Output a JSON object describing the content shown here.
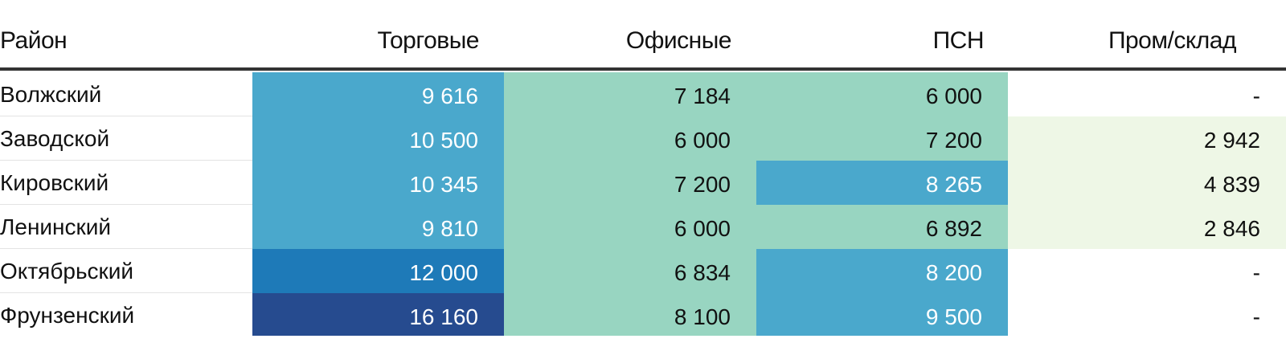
{
  "table": {
    "headers": [
      "Район",
      "Торговые",
      "Офисные",
      "ПСН",
      "Пром/склад"
    ],
    "rows": [
      {
        "district": "Волжский",
        "values": [
          "9 616",
          "7 184",
          "6 000",
          "-"
        ]
      },
      {
        "district": "Заводской",
        "values": [
          "10 500",
          "6 000",
          "7 200",
          "2 942"
        ]
      },
      {
        "district": "Кировский",
        "values": [
          "10 345",
          "7 200",
          "8 265",
          "4 839"
        ]
      },
      {
        "district": "Ленинский",
        "values": [
          "9 810",
          "6 000",
          "6 892",
          "2 846"
        ]
      },
      {
        "district": "Октябрьский",
        "values": [
          "12 000",
          "6 834",
          "8 200",
          "-"
        ]
      },
      {
        "district": "Фрунзенский",
        "values": [
          "16 160",
          "8 100",
          "9 500",
          "-"
        ]
      }
    ],
    "colors": {
      "dark_blue": "#264b8f",
      "mid_blue": "#1e7ab8",
      "light_blue": "#4aa8cc",
      "teal": "#98d5c1",
      "pale_green": "#eef7e6",
      "white": "#ffffff",
      "header_rule": "#333333"
    }
  },
  "chart_data": {
    "type": "table",
    "columns": [
      "Район",
      "Торговые",
      "Офисные",
      "ПСН",
      "Пром/склад"
    ],
    "categories": [
      "Волжский",
      "Заводской",
      "Кировский",
      "Ленинский",
      "Октябрьский",
      "Фрунзенский"
    ],
    "series": [
      {
        "name": "Торговые",
        "values": [
          9616,
          10500,
          10345,
          9810,
          12000,
          16160
        ]
      },
      {
        "name": "Офисные",
        "values": [
          7184,
          6000,
          7200,
          6000,
          6834,
          8100
        ]
      },
      {
        "name": "ПСН",
        "values": [
          6000,
          7200,
          8265,
          6892,
          8200,
          9500
        ]
      },
      {
        "name": "Пром/склад",
        "values": [
          null,
          2942,
          4839,
          2846,
          null,
          null
        ]
      }
    ],
    "cell_colors": [
      [
        "#4aa8cc",
        "#98d5c1",
        "#98d5c1",
        "#ffffff"
      ],
      [
        "#4aa8cc",
        "#98d5c1",
        "#98d5c1",
        "#eef7e6"
      ],
      [
        "#4aa8cc",
        "#98d5c1",
        "#4aa8cc",
        "#eef7e6"
      ],
      [
        "#4aa8cc",
        "#98d5c1",
        "#98d5c1",
        "#eef7e6"
      ],
      [
        "#1e7ab8",
        "#98d5c1",
        "#4aa8cc",
        "#ffffff"
      ],
      [
        "#264b8f",
        "#98d5c1",
        "#4aa8cc",
        "#ffffff"
      ]
    ]
  }
}
